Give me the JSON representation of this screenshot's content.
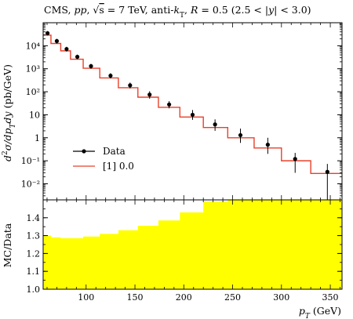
{
  "chart_data": [
    {
      "type": "line",
      "title": "CMS, pp, √s = 7 TeV, anti-kT, R = 0.5 (2.5 < |y| < 3.0)",
      "ylabel": "d²σ/dpTdy (pb/GeV)",
      "xlabel": "",
      "yscale": "log",
      "xlim": [
        56,
        362
      ],
      "ylim": [
        0.002,
        100000
      ],
      "y_ticks": [
        {
          "value": 0.01,
          "label": "10⁻²"
        },
        {
          "value": 0.1,
          "label": "10⁻¹"
        },
        {
          "value": 1,
          "label": "1"
        },
        {
          "value": 10,
          "label": "10"
        },
        {
          "value": 100,
          "label": "10²"
        },
        {
          "value": 1000,
          "label": "10³"
        },
        {
          "value": 10000,
          "label": "10⁴"
        }
      ],
      "legend_position": "lower-left",
      "series": [
        {
          "name": "Data",
          "style": "points-with-error-bars",
          "color": "#000000",
          "points": [
            {
              "x": 60.5,
              "y": 35000,
              "err_low": 7000,
              "err_high": 8000
            },
            {
              "x": 70,
              "y": 16000,
              "err_low": 3500,
              "err_high": 4000
            },
            {
              "x": 80,
              "y": 7200,
              "err_low": 1600,
              "err_high": 1800
            },
            {
              "x": 91,
              "y": 3300,
              "err_low": 700,
              "err_high": 800
            },
            {
              "x": 105,
              "y": 1300,
              "err_low": 300,
              "err_high": 330
            },
            {
              "x": 125,
              "y": 500,
              "err_low": 120,
              "err_high": 140
            },
            {
              "x": 145,
              "y": 190,
              "err_low": 50,
              "err_high": 60
            },
            {
              "x": 165,
              "y": 75,
              "err_low": 25,
              "err_high": 30
            },
            {
              "x": 185,
              "y": 28,
              "err_low": 9,
              "err_high": 11
            },
            {
              "x": 209,
              "y": 10,
              "err_low": 4,
              "err_high": 6
            },
            {
              "x": 232,
              "y": 3.8,
              "err_low": 1.8,
              "err_high": 2.5
            },
            {
              "x": 258,
              "y": 1.3,
              "err_low": 0.7,
              "err_high": 1.2
            },
            {
              "x": 286,
              "y": 0.5,
              "err_low": 0.3,
              "err_high": 0.5
            },
            {
              "x": 314,
              "y": 0.12,
              "err_low": 0.09,
              "err_high": 0.1
            },
            {
              "x": 347,
              "y": 0.033,
              "err_low": 0.031,
              "err_high": 0.04
            }
          ]
        },
        {
          "name": "[1] 0.0",
          "style": "step-histogram",
          "color": "#e8402a",
          "bins": [
            {
              "x_low": 56,
              "x_high": 64,
              "y": 29000
            },
            {
              "x_low": 64,
              "x_high": 74,
              "y": 12500
            },
            {
              "x_low": 74,
              "x_high": 84,
              "y": 6000
            },
            {
              "x_low": 84,
              "x_high": 97,
              "y": 2600
            },
            {
              "x_low": 97,
              "x_high": 114,
              "y": 1050
            },
            {
              "x_low": 114,
              "x_high": 133,
              "y": 400
            },
            {
              "x_low": 133,
              "x_high": 153,
              "y": 150
            },
            {
              "x_low": 153,
              "x_high": 174,
              "y": 58
            },
            {
              "x_low": 174,
              "x_high": 196,
              "y": 21
            },
            {
              "x_low": 196,
              "x_high": 220,
              "y": 8
            },
            {
              "x_low": 220,
              "x_high": 245,
              "y": 2.8
            },
            {
              "x_low": 245,
              "x_high": 272,
              "y": 1.0
            },
            {
              "x_low": 272,
              "x_high": 300,
              "y": 0.36
            },
            {
              "x_low": 300,
              "x_high": 330,
              "y": 0.1
            },
            {
              "x_low": 330,
              "x_high": 362,
              "y": 0.028
            }
          ]
        }
      ]
    },
    {
      "type": "area",
      "title": "",
      "xlabel": "pT (GeV)",
      "ylabel": "MC/Data",
      "xlim": [
        56,
        362
      ],
      "ylim": [
        1.0,
        1.5
      ],
      "x_ticks": [
        100,
        150,
        200,
        250,
        300,
        350
      ],
      "y_ticks": [
        1.0,
        1.1,
        1.2,
        1.3,
        1.4
      ],
      "fill_color": "#ffff00",
      "series": [
        {
          "name": "",
          "style": "filled-step",
          "bins": [
            {
              "x_low": 56,
              "x_high": 64,
              "y": 1.3
            },
            {
              "x_low": 64,
              "x_high": 74,
              "y": 1.29
            },
            {
              "x_low": 74,
              "x_high": 84,
              "y": 1.285
            },
            {
              "x_low": 84,
              "x_high": 97,
              "y": 1.285
            },
            {
              "x_low": 97,
              "x_high": 114,
              "y": 1.295
            },
            {
              "x_low": 114,
              "x_high": 133,
              "y": 1.31
            },
            {
              "x_low": 133,
              "x_high": 153,
              "y": 1.33
            },
            {
              "x_low": 153,
              "x_high": 174,
              "y": 1.355
            },
            {
              "x_low": 174,
              "x_high": 196,
              "y": 1.385
            },
            {
              "x_low": 196,
              "x_high": 220,
              "y": 1.43
            },
            {
              "x_low": 220,
              "x_high": 245,
              "y": 1.49
            },
            {
              "x_low": 245,
              "x_high": 272,
              "y": 1.5
            },
            {
              "x_low": 272,
              "x_high": 300,
              "y": 1.5
            },
            {
              "x_low": 300,
              "x_high": 330,
              "y": 1.5
            },
            {
              "x_low": 330,
              "x_high": 362,
              "y": 1.5
            }
          ]
        }
      ]
    }
  ]
}
